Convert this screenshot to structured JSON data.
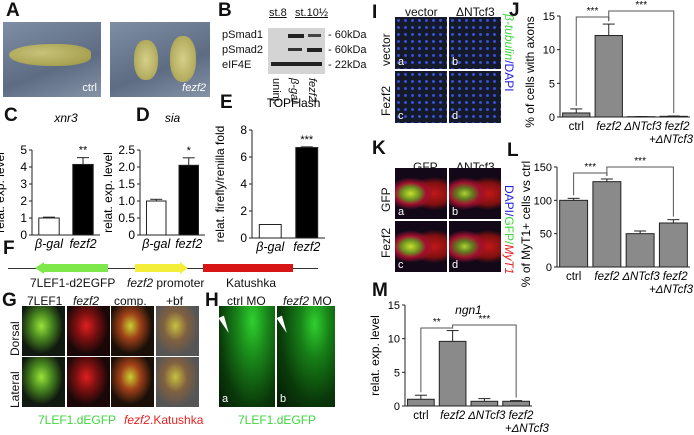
{
  "panels": {
    "A": "A",
    "B": "B",
    "C": "C",
    "D": "D",
    "E": "E",
    "F": "F",
    "G": "G",
    "H": "H",
    "I": "I",
    "J": "J",
    "K": "K",
    "L": "L",
    "M": "M"
  },
  "a": {
    "ctrl": "ctrl",
    "fezf2": "fezf2"
  },
  "b": {
    "stage1": "st.8",
    "stage2": "st.10½",
    "rows": [
      "pSmad1",
      "pSmad2",
      "eIF4E"
    ],
    "sizes": [
      "- 60kDa",
      "- 60kDa",
      "- 22kDa"
    ],
    "lanes": [
      "uninj.",
      "β-gal",
      "fezf2"
    ]
  },
  "f": {
    "gfp": "7LEF1-d2EGFP",
    "promoter_it": "fezf2",
    "promoter": " promoter",
    "katushka": "Katushka",
    "colors": {
      "gfp": "#7ee84a",
      "promoter": "#f2ee3a",
      "katushka": "#d81515"
    }
  },
  "g": {
    "cols": [
      "7LEF1",
      "fezf2",
      "comp.",
      "+bf"
    ],
    "rows": [
      "Dorsal",
      "Lateral"
    ],
    "legend_green": "7LEF1.dEGFP",
    "legend_red_it": "fezf2",
    "legend_red": ".Katushka"
  },
  "h": {
    "cols_a": "ctrl MO",
    "cols_b_it": "fezf2",
    "cols_b": " MO",
    "sub": [
      "a",
      "b"
    ],
    "legend": "7LEF1.dEGFP"
  },
  "i": {
    "cols": [
      "vector",
      "ΔNTcf3"
    ],
    "rows": [
      "vector",
      "Fezf2"
    ],
    "sub": [
      "a",
      "b",
      "c",
      "d"
    ],
    "stain_green": "β-tubulin",
    "stain_blue": "/DAPI"
  },
  "k": {
    "cols": [
      "GFP",
      "ΔNTcf3"
    ],
    "rows": [
      "GFP",
      "Fezf2"
    ],
    "sub": [
      "a",
      "b",
      "c",
      "d"
    ],
    "stain_blue": "DAPI/",
    "stain_green": "GFP/",
    "stain_red": "MyT1"
  },
  "chart_data": [
    {
      "id": "C",
      "type": "bar",
      "title": "xnr3",
      "ylabel": "relat. exp. level",
      "categories": [
        "β-gal",
        "fezf2"
      ],
      "values": [
        1.0,
        4.15
      ],
      "errors": [
        0.05,
        0.4
      ],
      "fills": [
        "#ffffff",
        "#000000"
      ],
      "ylim": [
        0,
        5
      ],
      "yticks": [
        "0",
        "1",
        "2",
        "3",
        "4",
        "5"
      ],
      "annotations": [
        "",
        "**"
      ]
    },
    {
      "id": "D",
      "type": "bar",
      "title": "sia",
      "ylabel": "relat. exp. level",
      "categories": [
        "β-gal",
        "fezf2"
      ],
      "values": [
        1.0,
        2.05
      ],
      "errors": [
        0.05,
        0.22
      ],
      "fills": [
        "#ffffff",
        "#000000"
      ],
      "ylim": [
        0,
        2.5
      ],
      "yticks": [
        "0",
        "0.5",
        "1.0",
        "1.5",
        "2.0",
        "2.5"
      ],
      "annotations": [
        "",
        "*"
      ]
    },
    {
      "id": "E",
      "type": "bar",
      "title": "TOPFlash",
      "ylabel": "relat. firefly/renilla fold",
      "categories": [
        "β-gal",
        "fezf2"
      ],
      "values": [
        1.0,
        6.7
      ],
      "errors": [
        0,
        0.05
      ],
      "fills": [
        "#ffffff",
        "#000000"
      ],
      "ylim": [
        0,
        8
      ],
      "yticks": [
        "0",
        "2",
        "4",
        "6",
        "8"
      ],
      "annotations": [
        "",
        "***"
      ]
    },
    {
      "id": "J",
      "type": "bar",
      "title": "",
      "ylabel": "% of cells with axons",
      "categories": [
        "ctrl",
        "fezf2",
        "ΔNTcf3",
        "fezf2\n+ΔNTcf3"
      ],
      "values": [
        0.6,
        12.1,
        0.05,
        0.1
      ],
      "errors": [
        0.6,
        1.7,
        0.02,
        0.05
      ],
      "fills": [
        "#8a8a8a",
        "#8a8a8a",
        "#8a8a8a",
        "#8a8a8a"
      ],
      "ylim": [
        0,
        15
      ],
      "yticks": [
        "0",
        "5",
        "10",
        "15"
      ],
      "brackets": [
        {
          "from": 0,
          "to": 1,
          "label": "***"
        },
        {
          "from": 1,
          "to": 3,
          "label": "***"
        }
      ]
    },
    {
      "id": "L",
      "type": "bar",
      "title": "",
      "ylabel": "% of MyT1+ cells vs ctrl",
      "categories": [
        "ctrl",
        "fezf2",
        "ΔNTcf3",
        "fezf2\n+ΔNTcf3"
      ],
      "values": [
        100,
        128,
        50,
        66
      ],
      "errors": [
        3,
        4,
        4,
        5
      ],
      "fills": [
        "#8a8a8a",
        "#8a8a8a",
        "#8a8a8a",
        "#8a8a8a"
      ],
      "ylim": [
        0,
        150
      ],
      "yticks": [
        "0",
        "50",
        "100",
        "150"
      ],
      "brackets": [
        {
          "from": 0,
          "to": 1,
          "label": "***"
        },
        {
          "from": 1,
          "to": 3,
          "label": "***"
        }
      ]
    },
    {
      "id": "M",
      "type": "bar",
      "title": "ngn1",
      "ylabel": "relat. exp. level",
      "categories": [
        "ctrl",
        "fezf2",
        "ΔNTcf3",
        "fezf2\n+ΔNTcf3"
      ],
      "values": [
        1.0,
        9.6,
        0.7,
        0.7
      ],
      "errors": [
        0.6,
        1.6,
        0.4,
        0.1
      ],
      "fills": [
        "#8a8a8a",
        "#8a8a8a",
        "#8a8a8a",
        "#8a8a8a"
      ],
      "ylim": [
        0,
        15
      ],
      "yticks": [
        "0",
        "5",
        "10",
        "15"
      ],
      "brackets": [
        {
          "from": 0,
          "to": 1,
          "label": "**"
        },
        {
          "from": 1,
          "to": 3,
          "label": "***"
        }
      ]
    }
  ]
}
